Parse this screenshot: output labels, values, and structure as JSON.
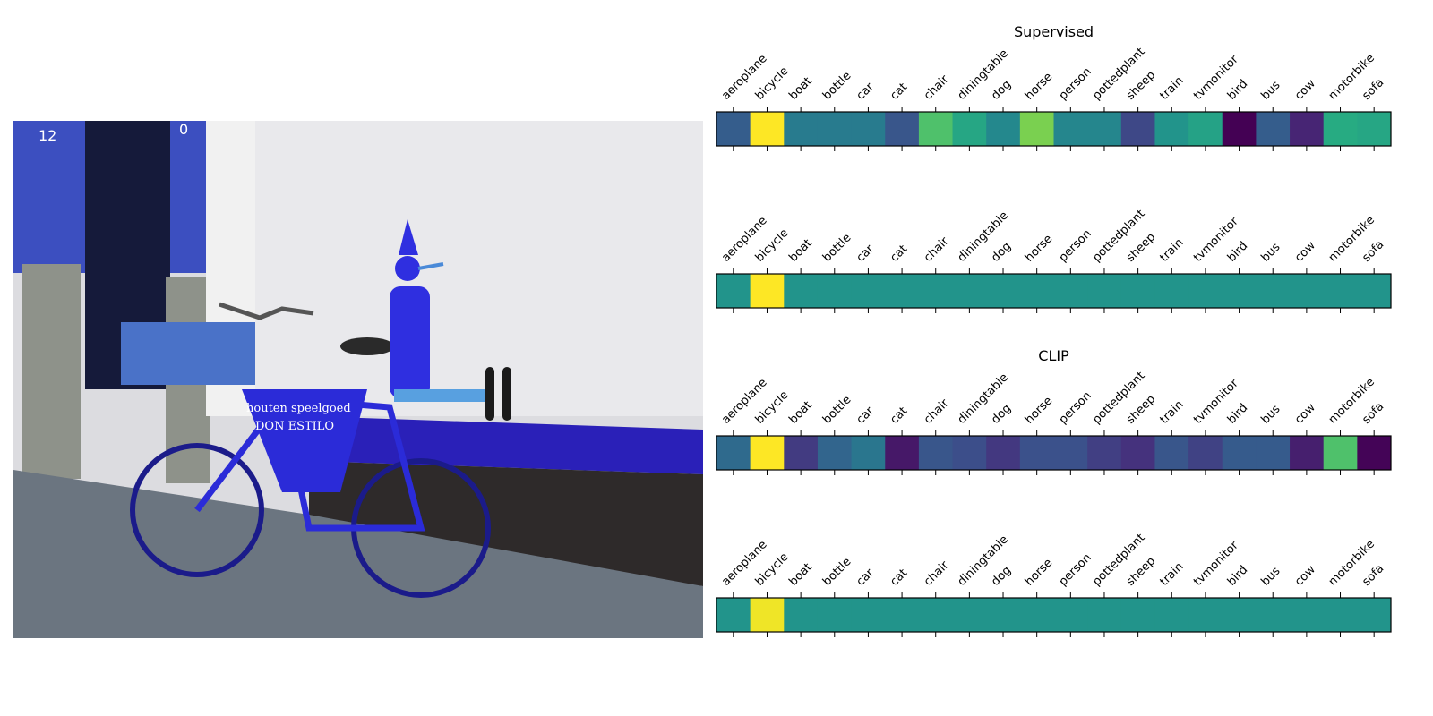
{
  "chart_data": {
    "type": "heatmap",
    "categories": [
      "aeroplane",
      "bicycle",
      "boat",
      "bottle",
      "car",
      "cat",
      "chair",
      "diningtable",
      "dog",
      "horse",
      "person",
      "pottedplant",
      "sheep",
      "train",
      "tvmonitor",
      "bird",
      "bus",
      "cow",
      "motorbike",
      "sofa"
    ],
    "colormap": "viridis",
    "panels": [
      {
        "title": "Supervised",
        "values": [
          0.3,
          1.0,
          0.42,
          0.42,
          0.42,
          0.27,
          0.72,
          0.6,
          0.47,
          0.8,
          0.46,
          0.46,
          0.22,
          0.52,
          0.58,
          0.0,
          0.3,
          0.11,
          0.62,
          0.6
        ]
      },
      {
        "title": "",
        "values": [
          0.52,
          1.0,
          0.52,
          0.52,
          0.52,
          0.52,
          0.52,
          0.52,
          0.52,
          0.52,
          0.52,
          0.52,
          0.52,
          0.52,
          0.52,
          0.52,
          0.52,
          0.52,
          0.52,
          0.52
        ]
      },
      {
        "title": "CLIP",
        "values": [
          0.35,
          1.0,
          0.18,
          0.33,
          0.4,
          0.07,
          0.27,
          0.24,
          0.17,
          0.25,
          0.25,
          0.19,
          0.15,
          0.27,
          0.2,
          0.29,
          0.29,
          0.09,
          0.72,
          0.01
        ]
      },
      {
        "title": "",
        "values": [
          0.52,
          0.98,
          0.52,
          0.52,
          0.52,
          0.52,
          0.52,
          0.52,
          0.52,
          0.52,
          0.52,
          0.52,
          0.52,
          0.52,
          0.52,
          0.52,
          0.52,
          0.52,
          0.52,
          0.52
        ]
      }
    ]
  },
  "photo": {
    "sign_line_1": "houten speelgoed",
    "sign_line_2": "DON ESTILO",
    "door_number_left": "12",
    "door_number_right": "0"
  }
}
